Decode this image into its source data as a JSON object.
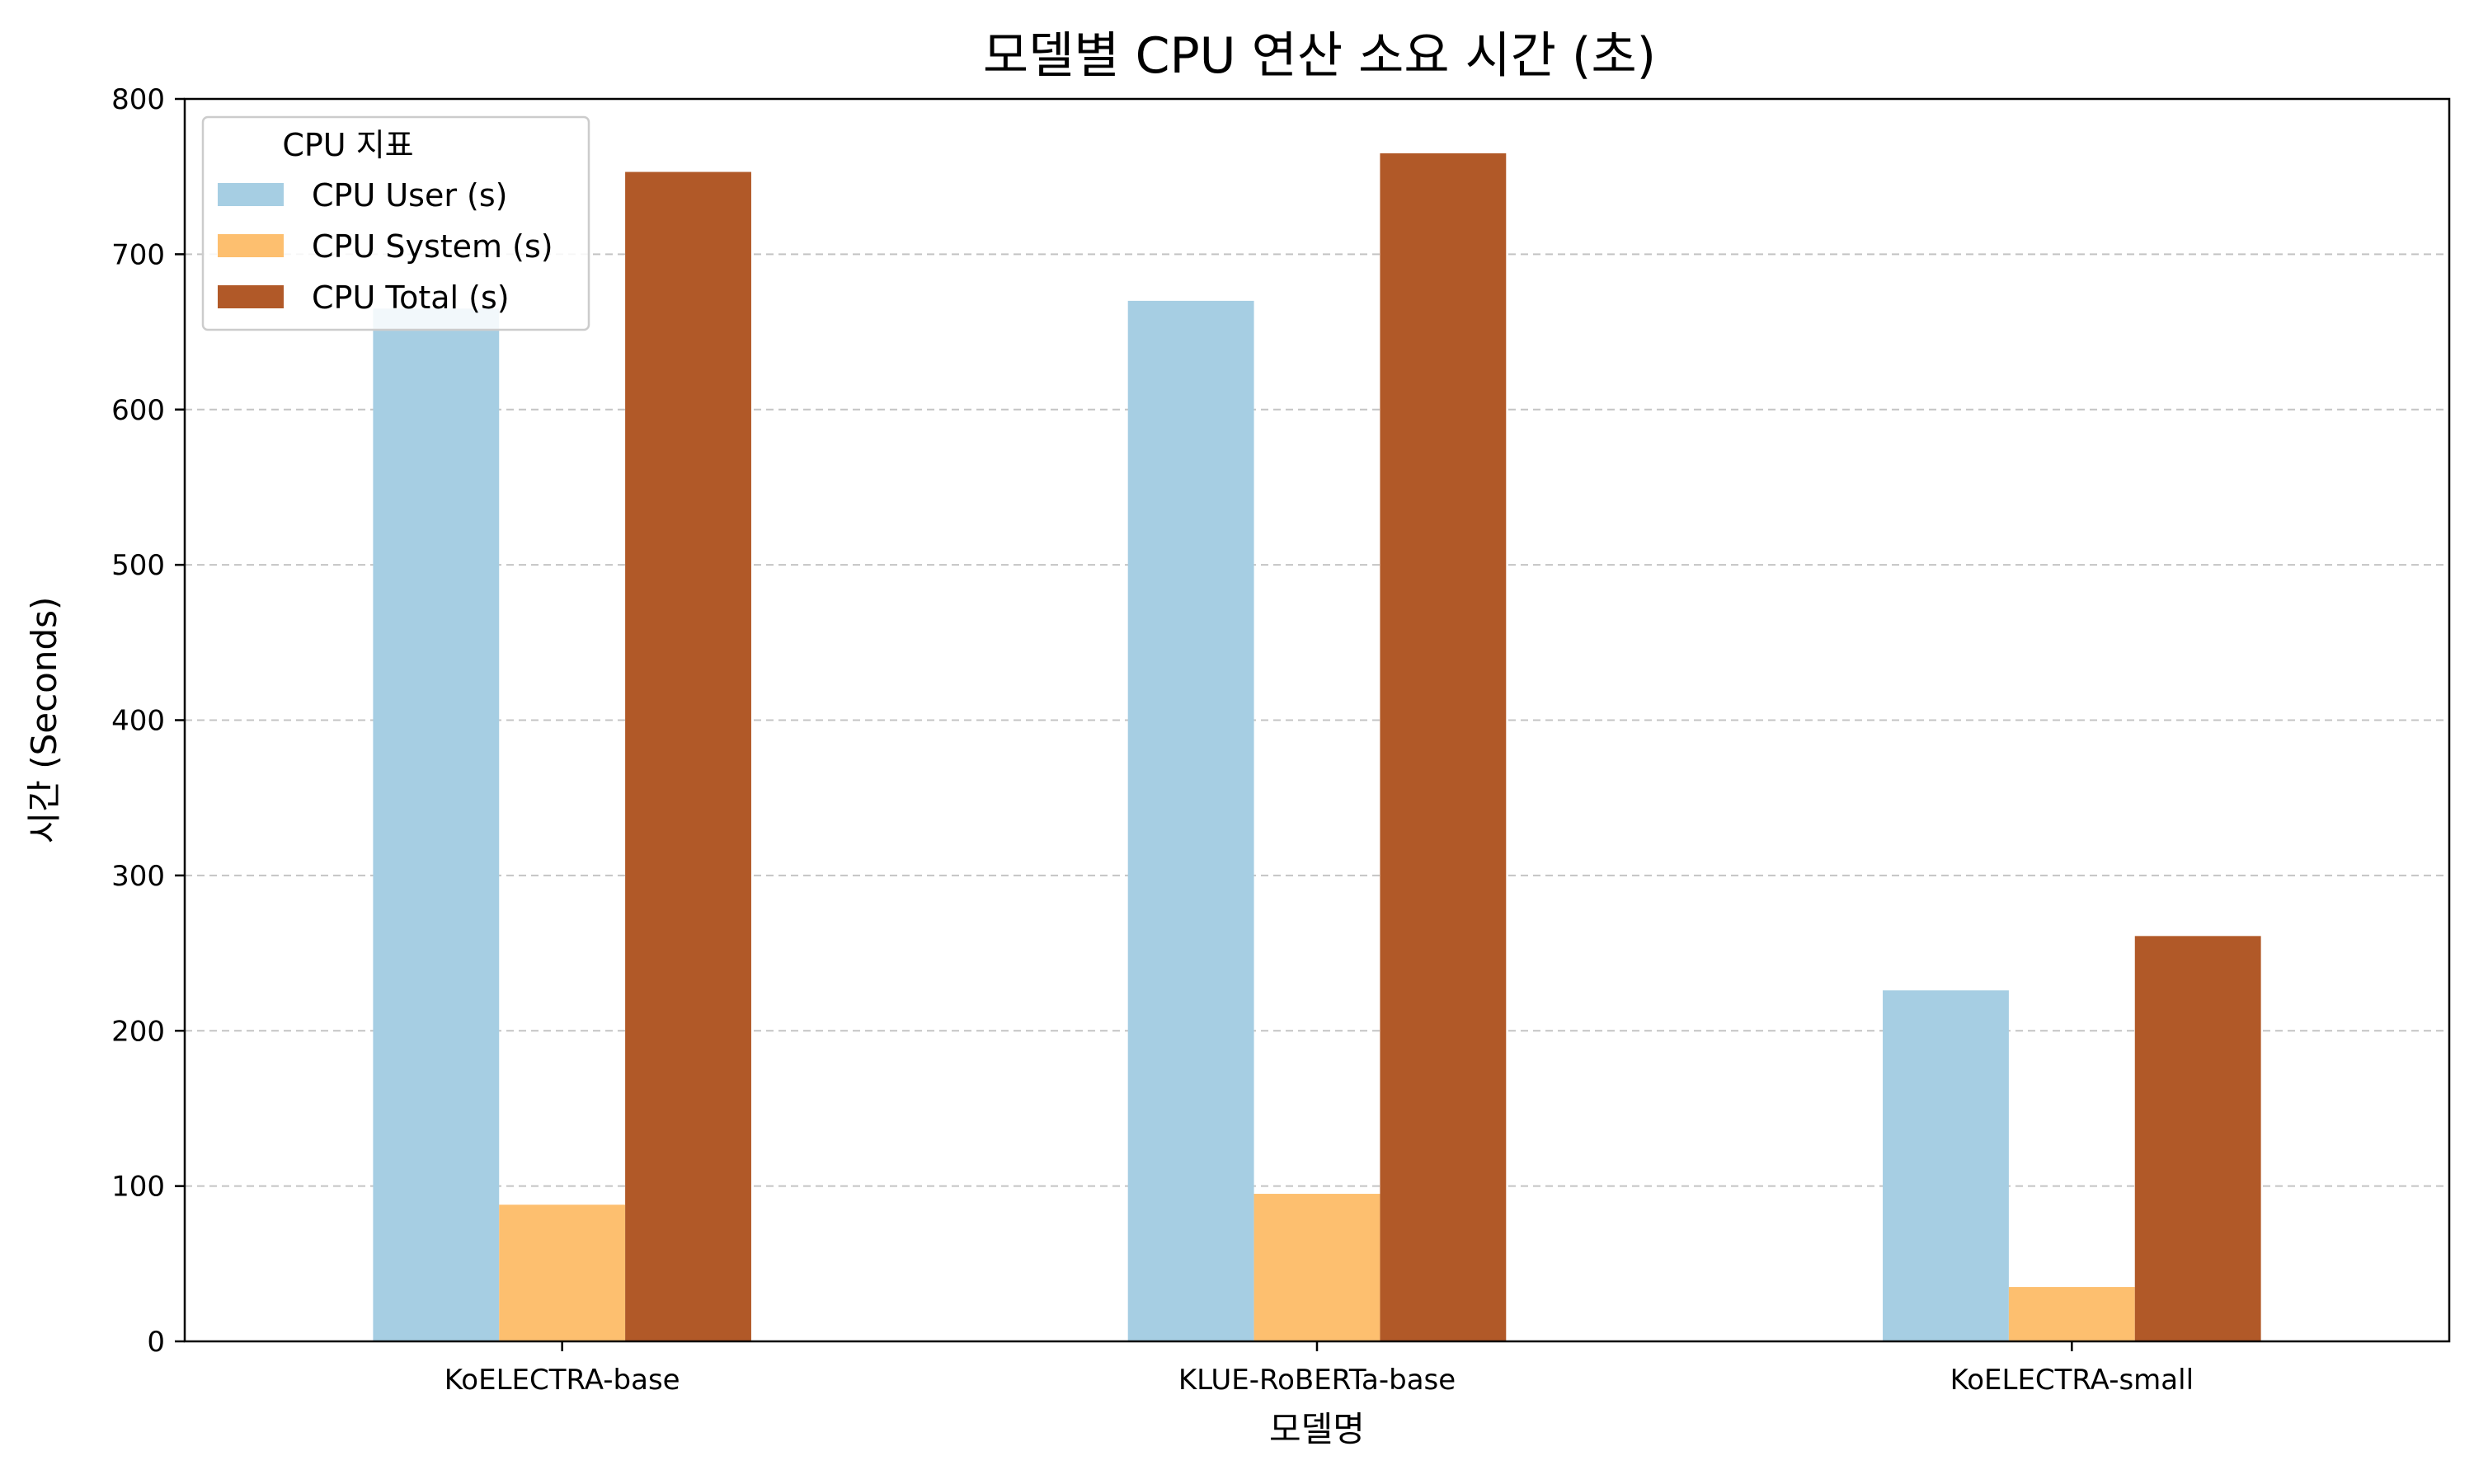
{
  "chart_data": {
    "type": "bar",
    "title": "모델별 CPU 연산 소요 시간 (초)",
    "xlabel": "모델명",
    "ylabel": "시간 (Seconds)",
    "categories": [
      "KoELECTRA-base",
      "KLUE-RoBERTa-base",
      "KoELECTRA-small"
    ],
    "series": [
      {
        "name": "CPU User (s)",
        "color": "#a6cee3",
        "values": [
          665,
          670,
          226
        ]
      },
      {
        "name": "CPU System (s)",
        "color": "#fdbf6f",
        "values": [
          88,
          95,
          35
        ]
      },
      {
        "name": "CPU Total (s)",
        "color": "#b15928",
        "values": [
          753,
          765,
          261
        ]
      }
    ],
    "ylim": [
      0,
      800
    ],
    "yticks": [
      0,
      100,
      200,
      300,
      400,
      500,
      600,
      700,
      800
    ],
    "grid": "y-dashed",
    "legend": {
      "title": "CPU 지표",
      "position": "upper-left"
    }
  }
}
